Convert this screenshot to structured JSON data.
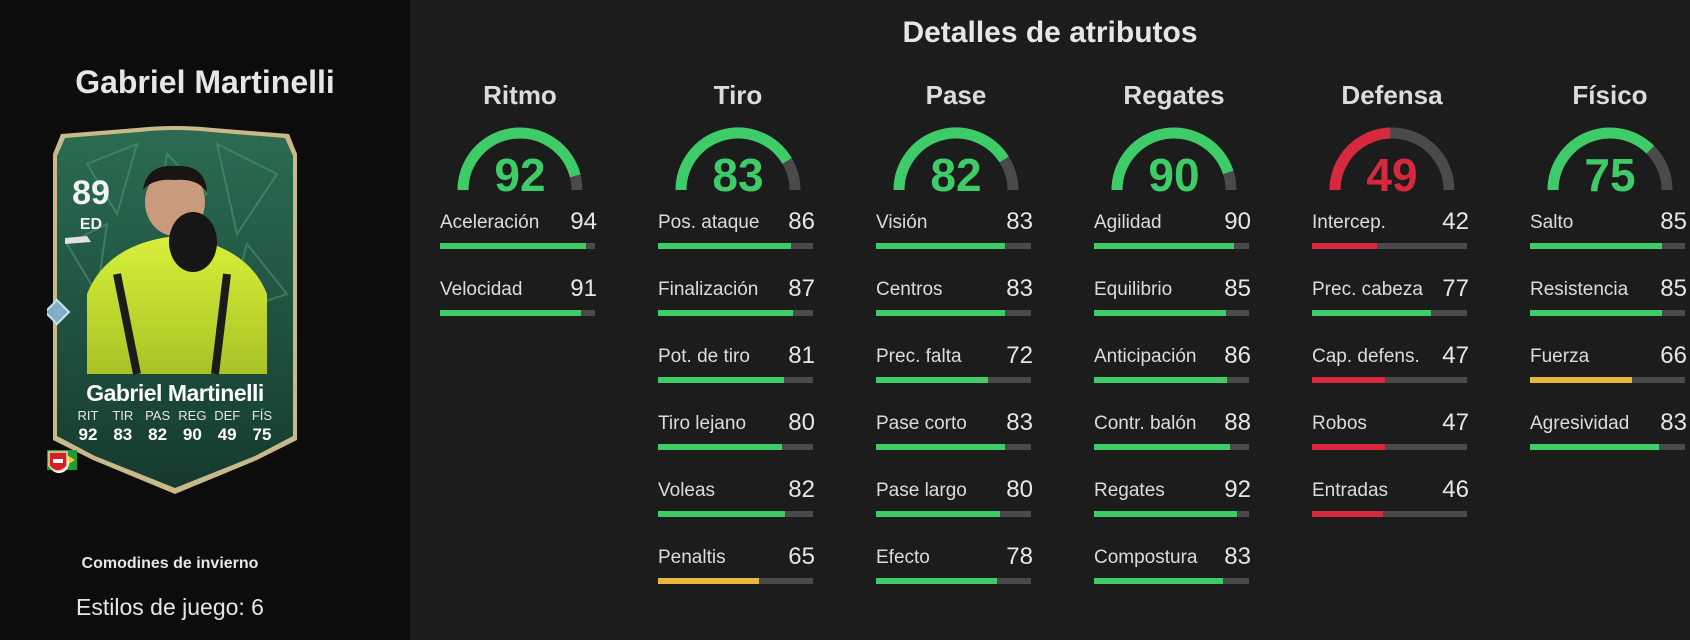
{
  "player": {
    "name": "Gabriel Martinelli",
    "rating": "89",
    "position": "ED",
    "card_name": "Gabriel Martinelli",
    "card_stats": [
      {
        "label": "RIT",
        "value": "92"
      },
      {
        "label": "TIR",
        "value": "83"
      },
      {
        "label": "PAS",
        "value": "82"
      },
      {
        "label": "REG",
        "value": "90"
      },
      {
        "label": "DEF",
        "value": "49"
      },
      {
        "label": "FÍS",
        "value": "75"
      }
    ],
    "card_icons": [
      "brazil-flag-icon",
      "premier-league-icon",
      "arsenal-crest-icon"
    ],
    "promo": "Comodines de invierno",
    "playstyles": "Estilos de juego: 6"
  },
  "section_title": "Detalles de atributos",
  "colors": {
    "green": "#3ecc69",
    "yellow": "#e7b83d",
    "red": "#d8283d",
    "track": "#4a4a4a"
  },
  "categories": [
    {
      "name": "Ritmo",
      "value": "92",
      "level": 0.92,
      "attributes": [
        {
          "name": "Aceleración",
          "value": "94",
          "level": 0.94
        },
        {
          "name": "Velocidad",
          "value": "91",
          "level": 0.91
        }
      ]
    },
    {
      "name": "Tiro",
      "value": "83",
      "level": 0.83,
      "attributes": [
        {
          "name": "Pos. ataque",
          "value": "86",
          "level": 0.86
        },
        {
          "name": "Finalización",
          "value": "87",
          "level": 0.87
        },
        {
          "name": "Pot. de tiro",
          "value": "81",
          "level": 0.81
        },
        {
          "name": "Tiro lejano",
          "value": "80",
          "level": 0.8
        },
        {
          "name": "Voleas",
          "value": "82",
          "level": 0.82
        },
        {
          "name": "Penaltis",
          "value": "65",
          "level": 0.65
        }
      ]
    },
    {
      "name": "Pase",
      "value": "82",
      "level": 0.82,
      "attributes": [
        {
          "name": "Visión",
          "value": "83",
          "level": 0.83
        },
        {
          "name": "Centros",
          "value": "83",
          "level": 0.83
        },
        {
          "name": "Prec. falta",
          "value": "72",
          "level": 0.72
        },
        {
          "name": "Pase corto",
          "value": "83",
          "level": 0.83
        },
        {
          "name": "Pase largo",
          "value": "80",
          "level": 0.8
        },
        {
          "name": "Efecto",
          "value": "78",
          "level": 0.78
        }
      ]
    },
    {
      "name": "Regates",
      "value": "90",
      "level": 0.9,
      "attributes": [
        {
          "name": "Agilidad",
          "value": "90",
          "level": 0.9
        },
        {
          "name": "Equilibrio",
          "value": "85",
          "level": 0.85
        },
        {
          "name": "Anticipación",
          "value": "86",
          "level": 0.86
        },
        {
          "name": "Contr. balón",
          "value": "88",
          "level": 0.88
        },
        {
          "name": "Regates",
          "value": "92",
          "level": 0.92
        },
        {
          "name": "Compostura",
          "value": "83",
          "level": 0.83
        }
      ]
    },
    {
      "name": "Defensa",
      "value": "49",
      "level": 0.49,
      "attributes": [
        {
          "name": "Intercep.",
          "value": "42",
          "level": 0.42
        },
        {
          "name": "Prec. cabeza",
          "value": "77",
          "level": 0.77
        },
        {
          "name": "Cap. defens.",
          "value": "47",
          "level": 0.47
        },
        {
          "name": "Robos",
          "value": "47",
          "level": 0.47
        },
        {
          "name": "Entradas",
          "value": "46",
          "level": 0.46
        }
      ]
    },
    {
      "name": "Físico",
      "value": "75",
      "level": 0.75,
      "attributes": [
        {
          "name": "Salto",
          "value": "85",
          "level": 0.85
        },
        {
          "name": "Resistencia",
          "value": "85",
          "level": 0.85
        },
        {
          "name": "Fuerza",
          "value": "66",
          "level": 0.66
        },
        {
          "name": "Agresividad",
          "value": "83",
          "level": 0.83
        }
      ]
    }
  ]
}
